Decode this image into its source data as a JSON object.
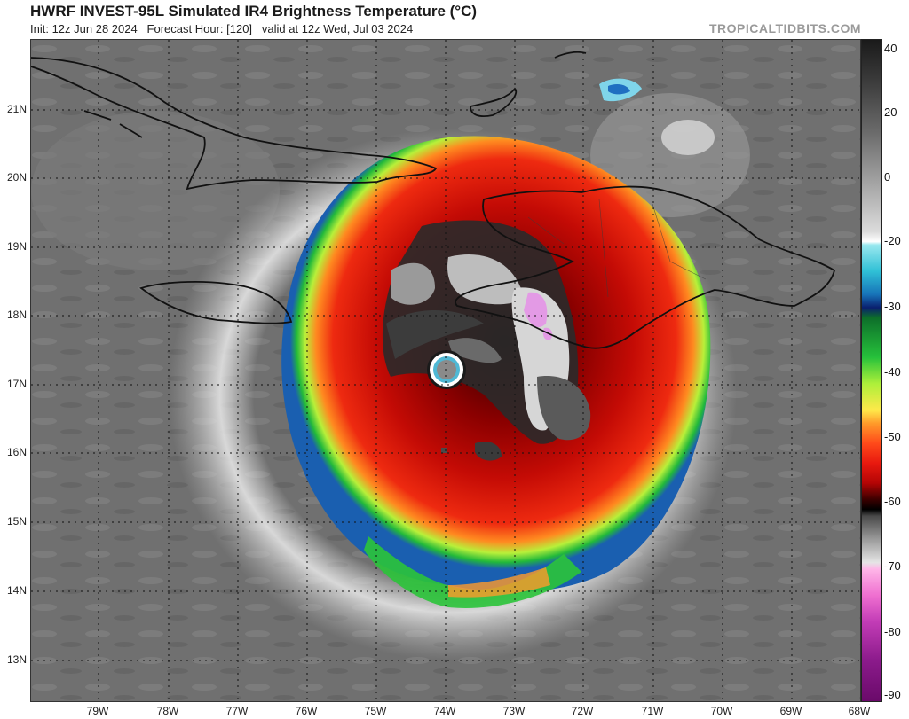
{
  "header": {
    "title": "HWRF INVEST-95L Simulated IR4 Brightness Temperature (°C)",
    "init": "Init: 12z Jun 28 2024",
    "forecast_hour": "Forecast Hour: [120]",
    "valid": "valid at 12z Wed, Jul 03 2024",
    "credit": "TROPICALTIDBITS.COM"
  },
  "map": {
    "lat_labels": [
      "21N",
      "20N",
      "19N",
      "18N",
      "17N",
      "16N",
      "15N",
      "14N",
      "13N"
    ],
    "lon_labels": [
      "79W",
      "78W",
      "77W",
      "76W",
      "75W",
      "74W",
      "73W",
      "72W",
      "71W",
      "70W",
      "69W",
      "68W"
    ],
    "background_color": "#6e6e6e",
    "coastline_color": "#111111",
    "gridline_style": "dotted"
  },
  "colorbar": {
    "labels": [
      "40",
      "20",
      "0",
      "-20",
      "-30",
      "-40",
      "-50",
      "-60",
      "-70",
      "-80",
      "-90"
    ],
    "unit": "°C"
  }
}
